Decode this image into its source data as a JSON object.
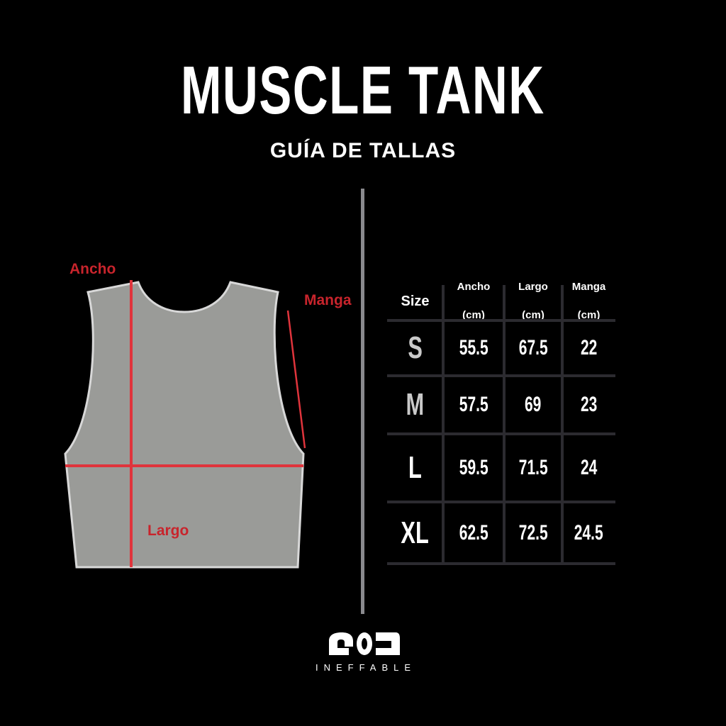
{
  "title": "MUSCLE TANK",
  "subtitle": "GUÍA DE TALLAS",
  "diagram": {
    "labels": {
      "width": "Ancho",
      "sleeve": "Manga",
      "length": "Largo"
    },
    "accent_color": "#c8242c",
    "garment_color": "#9a9b98"
  },
  "table": {
    "headers": [
      {
        "line1": "Size",
        "line2": ""
      },
      {
        "line1": "Ancho",
        "line2": "(cm)"
      },
      {
        "line1": "Largo",
        "line2": "(cm)"
      },
      {
        "line1": "Manga",
        "line2": "(cm)"
      }
    ],
    "rows": [
      {
        "size": "S",
        "ancho": "55.5",
        "largo": "67.5",
        "manga": "22"
      },
      {
        "size": "M",
        "ancho": "57.5",
        "largo": "69",
        "manga": "23"
      },
      {
        "size": "L",
        "ancho": "59.5",
        "largo": "71.5",
        "manga": "24"
      },
      {
        "size": "XL",
        "ancho": "62.5",
        "largo": "72.5",
        "manga": "24.5"
      }
    ]
  },
  "brand": {
    "name": "INEFFABLE",
    "logo_icon": "ineffable-logo"
  }
}
